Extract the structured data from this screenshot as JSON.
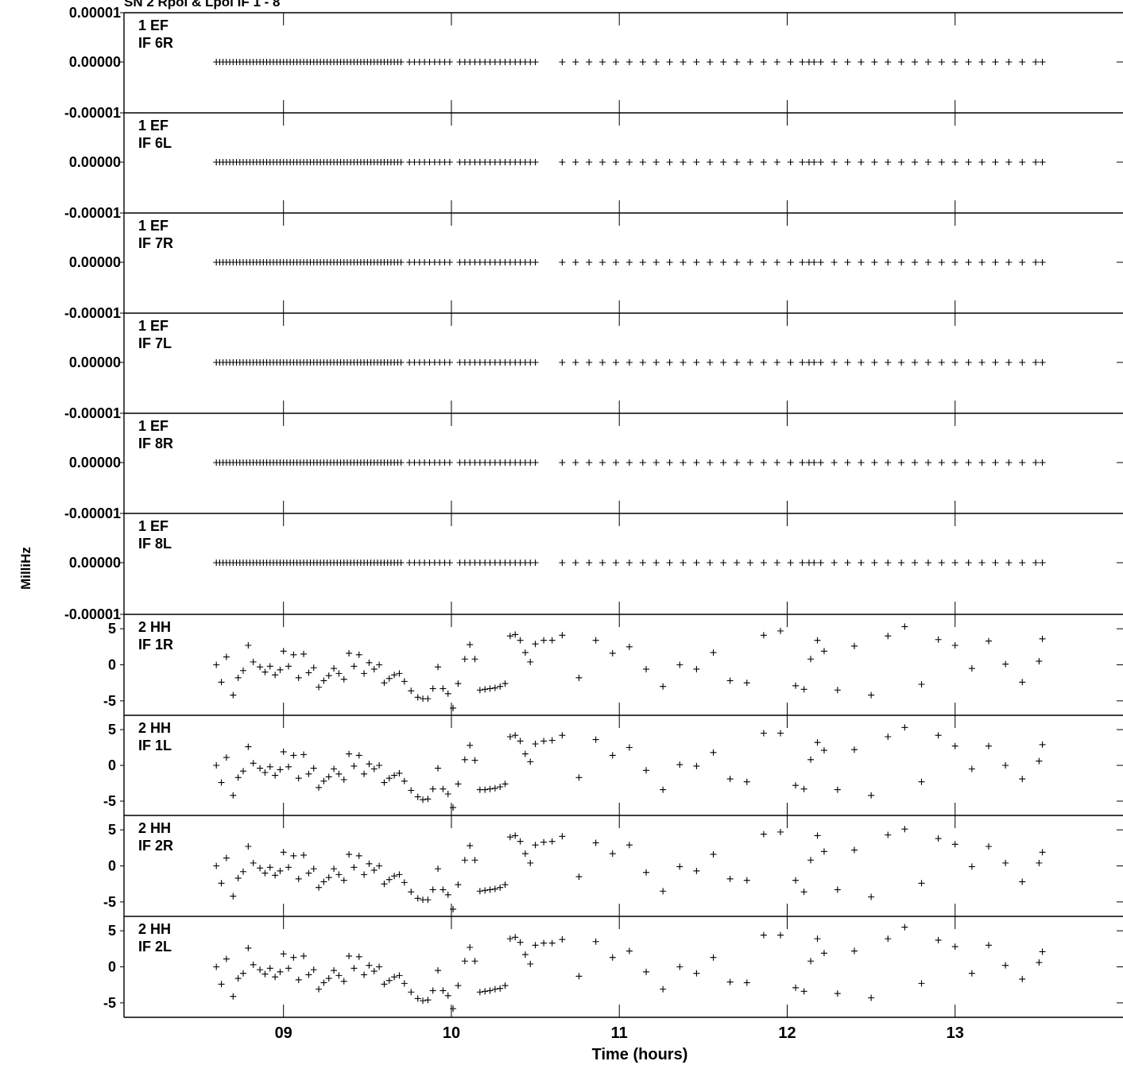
{
  "chart_data": {
    "type": "scatter",
    "title": "SN 2 Rpol & Lpol IF 1 - 8",
    "xlabel": "Time (hours)",
    "ylabel": "MilliHz",
    "xlim": [
      8.05,
      14.0
    ],
    "x_ticks": [
      "09",
      "10",
      "11",
      "12",
      "13"
    ],
    "x_tick_values": [
      9,
      10,
      11,
      12,
      13
    ],
    "panels": [
      {
        "antenna": "1 EF",
        "if": "IF 6R",
        "y_ticks": [
          "0.00001",
          "0.00000",
          "-0.00001"
        ],
        "ylim": [
          -1e-05,
          1e-05
        ],
        "flat": true
      },
      {
        "antenna": "1 EF",
        "if": "IF 6L",
        "y_ticks": [
          "0.00000",
          "-0.00001"
        ],
        "ylim": [
          -1e-05,
          1e-05
        ],
        "flat": true
      },
      {
        "antenna": "1 EF",
        "if": "IF 7R",
        "y_ticks": [
          "0.00000",
          "-0.00001"
        ],
        "ylim": [
          -1e-05,
          1e-05
        ],
        "flat": true
      },
      {
        "antenna": "1 EF",
        "if": "IF 7L",
        "y_ticks": [
          "0.00000",
          "-0.00001"
        ],
        "ylim": [
          -1e-05,
          1e-05
        ],
        "flat": true
      },
      {
        "antenna": "1 EF",
        "if": "IF 8R",
        "y_ticks": [
          "0.00000",
          "-0.00001"
        ],
        "ylim": [
          -1e-05,
          1e-05
        ],
        "flat": true
      },
      {
        "antenna": "1 EF",
        "if": "IF 8L",
        "y_ticks": [
          "0.00000",
          "-0.00001"
        ],
        "ylim": [
          -1e-05,
          1e-05
        ],
        "flat": true
      },
      {
        "antenna": "2 HH",
        "if": "IF 1R",
        "y_ticks": [
          "5",
          "0",
          "-5"
        ],
        "ylim": [
          -7,
          7
        ],
        "flat": false
      },
      {
        "antenna": "2 HH",
        "if": "IF 1L",
        "y_ticks": [
          "5",
          "0",
          "-5"
        ],
        "ylim": [
          -7,
          7
        ],
        "flat": false
      },
      {
        "antenna": "2 HH",
        "if": "IF 2R",
        "y_ticks": [
          "5",
          "0",
          "-5"
        ],
        "ylim": [
          -7,
          7
        ],
        "flat": false
      },
      {
        "antenna": "2 HH",
        "if": "IF 2L",
        "y_ticks": [
          "5",
          "0",
          "-5"
        ],
        "ylim": [
          -7,
          7
        ],
        "flat": false
      }
    ],
    "flat_x": [
      8.6,
      8.62,
      8.64,
      8.66,
      8.68,
      8.7,
      8.72,
      8.74,
      8.76,
      8.78,
      8.8,
      8.82,
      8.84,
      8.86,
      8.88,
      8.9,
      8.92,
      8.94,
      8.96,
      8.98,
      9.0,
      9.02,
      9.04,
      9.06,
      9.08,
      9.1,
      9.12,
      9.14,
      9.16,
      9.18,
      9.2,
      9.22,
      9.24,
      9.26,
      9.28,
      9.3,
      9.32,
      9.34,
      9.36,
      9.38,
      9.4,
      9.42,
      9.44,
      9.46,
      9.48,
      9.5,
      9.52,
      9.54,
      9.56,
      9.58,
      9.6,
      9.62,
      9.64,
      9.66,
      9.68,
      9.7,
      9.75,
      9.78,
      9.81,
      9.84,
      9.87,
      9.9,
      9.93,
      9.96,
      9.99,
      10.05,
      10.08,
      10.11,
      10.14,
      10.17,
      10.2,
      10.23,
      10.26,
      10.29,
      10.32,
      10.35,
      10.38,
      10.41,
      10.44,
      10.47,
      10.5,
      10.66,
      10.74,
      10.82,
      10.9,
      10.98,
      11.06,
      11.14,
      11.22,
      11.3,
      11.38,
      11.46,
      11.54,
      11.62,
      11.7,
      11.78,
      11.86,
      11.94,
      12.02,
      12.09,
      12.13,
      12.16,
      12.2,
      12.28,
      12.36,
      12.44,
      12.52,
      12.6,
      12.68,
      12.76,
      12.84,
      12.92,
      13.0,
      13.08,
      13.16,
      13.24,
      13.32,
      13.4,
      13.48,
      13.52
    ],
    "flat_y": 0,
    "series": [
      {
        "x": [
          8.6,
          8.63,
          8.66,
          8.7,
          8.73,
          8.76,
          8.79,
          8.82,
          8.86,
          8.89,
          8.92,
          8.95,
          8.98,
          9.0,
          9.03,
          9.06,
          9.09,
          9.12,
          9.15,
          9.18,
          9.21,
          9.24,
          9.27,
          9.3,
          9.33,
          9.36,
          9.39,
          9.42,
          9.45,
          9.48,
          9.51,
          9.54,
          9.57,
          9.6,
          9.63,
          9.66,
          9.69,
          9.72,
          9.76,
          9.8,
          9.83,
          9.86,
          9.89,
          9.92,
          9.95,
          9.98,
          10.01,
          10.04,
          10.08,
          10.11,
          10.14,
          10.17,
          10.2,
          10.23,
          10.26,
          10.29,
          10.32,
          10.35,
          10.38,
          10.41,
          10.44,
          10.47,
          10.5,
          10.55,
          10.6,
          10.66,
          10.76,
          10.86,
          10.96,
          11.06,
          11.16,
          11.26,
          11.36,
          11.46,
          11.56,
          11.66,
          11.76,
          11.86,
          11.96,
          12.05,
          12.1,
          12.14,
          12.18,
          12.22,
          12.3,
          12.4,
          12.5,
          12.6,
          12.7,
          12.8,
          12.9,
          13.0,
          13.1,
          13.2,
          13.3,
          13.4,
          13.5,
          13.52
        ],
        "y": [
          0.0,
          -2.4,
          1.1,
          -4.2,
          -1.8,
          -0.8,
          2.7,
          0.4,
          -0.3,
          -1.0,
          -0.2,
          -1.4,
          -0.7,
          1.9,
          -0.2,
          1.4,
          -1.8,
          1.5,
          -1.1,
          -0.4,
          -3.1,
          -2.2,
          -1.5,
          -0.5,
          -1.2,
          -2.0,
          1.6,
          -0.2,
          1.4,
          -1.2,
          0.3,
          -0.6,
          0.0,
          -2.5,
          -1.9,
          -1.4,
          -1.2,
          -2.3,
          -3.6,
          -4.5,
          -4.7,
          -4.7,
          -3.3,
          -0.3,
          -3.3,
          -4.0,
          -6.0,
          -2.6,
          0.8,
          2.8,
          0.8,
          -3.5,
          -3.4,
          -3.3,
          -3.2,
          -3.0,
          -2.6,
          4.0,
          4.2,
          3.4,
          1.7,
          0.4,
          2.9,
          3.4,
          3.4,
          4.1,
          -1.8,
          3.4,
          1.6,
          2.5,
          -0.6,
          -3.0,
          0.0,
          -0.6,
          1.7,
          -2.2,
          -2.5,
          4.1,
          4.7,
          -2.9,
          -3.4,
          0.8,
          3.4,
          1.9,
          -3.5,
          2.6,
          -4.2,
          4.0,
          5.3,
          -2.7,
          3.5,
          2.7,
          -0.5,
          3.3,
          0.1,
          -2.4,
          0.5,
          3.6
        ],
        "name": "IF 1R"
      },
      {
        "x": [
          8.6,
          8.63,
          8.66,
          8.7,
          8.73,
          8.76,
          8.79,
          8.82,
          8.86,
          8.89,
          8.92,
          8.95,
          8.98,
          9.0,
          9.03,
          9.06,
          9.09,
          9.12,
          9.15,
          9.18,
          9.21,
          9.24,
          9.27,
          9.3,
          9.33,
          9.36,
          9.39,
          9.42,
          9.45,
          9.48,
          9.51,
          9.54,
          9.57,
          9.6,
          9.63,
          9.66,
          9.69,
          9.72,
          9.76,
          9.8,
          9.83,
          9.86,
          9.89,
          9.92,
          9.95,
          9.98,
          10.01,
          10.04,
          10.08,
          10.11,
          10.14,
          10.17,
          10.2,
          10.23,
          10.26,
          10.29,
          10.32,
          10.35,
          10.38,
          10.41,
          10.44,
          10.47,
          10.5,
          10.55,
          10.6,
          10.66,
          10.76,
          10.86,
          10.96,
          11.06,
          11.16,
          11.26,
          11.36,
          11.46,
          11.56,
          11.66,
          11.76,
          11.86,
          11.96,
          12.05,
          12.1,
          12.14,
          12.18,
          12.22,
          12.3,
          12.4,
          12.5,
          12.6,
          12.7,
          12.8,
          12.9,
          13.0,
          13.1,
          13.2,
          13.3,
          13.4,
          13.5,
          13.52
        ],
        "y": [
          0.0,
          -2.4,
          1.1,
          -4.2,
          -1.7,
          -0.8,
          2.6,
          0.3,
          -0.4,
          -1.0,
          -0.2,
          -1.4,
          -0.6,
          1.9,
          -0.2,
          1.4,
          -1.8,
          1.5,
          -1.2,
          -0.4,
          -3.1,
          -2.2,
          -1.6,
          -0.5,
          -1.2,
          -2.0,
          1.6,
          -0.1,
          1.4,
          -1.2,
          0.2,
          -0.5,
          0.0,
          -2.4,
          -1.8,
          -1.4,
          -1.1,
          -2.2,
          -3.5,
          -4.4,
          -4.8,
          -4.7,
          -3.3,
          -0.4,
          -3.3,
          -4.0,
          -5.9,
          -2.6,
          0.8,
          2.8,
          0.7,
          -3.4,
          -3.4,
          -3.3,
          -3.2,
          -3.0,
          -2.6,
          4.0,
          4.2,
          3.4,
          1.6,
          0.5,
          3.0,
          3.4,
          3.5,
          4.2,
          -1.7,
          3.6,
          1.4,
          2.5,
          -0.7,
          -3.4,
          0.1,
          -0.1,
          1.8,
          -1.9,
          -2.3,
          4.5,
          4.5,
          -2.8,
          -3.3,
          0.8,
          3.2,
          2.1,
          -3.4,
          2.2,
          -4.2,
          4.0,
          5.3,
          -2.3,
          4.2,
          2.7,
          -0.5,
          2.7,
          0.0,
          -1.9,
          0.6,
          2.9
        ],
        "name": "IF 1L"
      },
      {
        "x": [
          8.6,
          8.63,
          8.66,
          8.7,
          8.73,
          8.76,
          8.79,
          8.82,
          8.86,
          8.89,
          8.92,
          8.95,
          8.98,
          9.0,
          9.03,
          9.06,
          9.09,
          9.12,
          9.15,
          9.18,
          9.21,
          9.24,
          9.27,
          9.3,
          9.33,
          9.36,
          9.39,
          9.42,
          9.45,
          9.48,
          9.51,
          9.54,
          9.57,
          9.6,
          9.63,
          9.66,
          9.69,
          9.72,
          9.76,
          9.8,
          9.83,
          9.86,
          9.89,
          9.92,
          9.95,
          9.98,
          10.01,
          10.04,
          10.08,
          10.11,
          10.14,
          10.17,
          10.2,
          10.23,
          10.26,
          10.29,
          10.32,
          10.35,
          10.38,
          10.41,
          10.44,
          10.47,
          10.5,
          10.55,
          10.6,
          10.66,
          10.76,
          10.86,
          10.96,
          11.06,
          11.16,
          11.26,
          11.36,
          11.46,
          11.56,
          11.66,
          11.76,
          11.86,
          11.96,
          12.05,
          12.1,
          12.14,
          12.18,
          12.22,
          12.3,
          12.4,
          12.5,
          12.6,
          12.7,
          12.8,
          12.9,
          13.0,
          13.1,
          13.2,
          13.3,
          13.4,
          13.5,
          13.52
        ],
        "y": [
          0.0,
          -2.4,
          1.1,
          -4.2,
          -1.7,
          -0.8,
          2.7,
          0.4,
          -0.3,
          -1.0,
          -0.2,
          -1.3,
          -0.7,
          1.9,
          -0.2,
          1.4,
          -1.8,
          1.5,
          -1.0,
          -0.4,
          -3.0,
          -2.2,
          -1.6,
          -0.4,
          -1.2,
          -2.0,
          1.6,
          -0.2,
          1.4,
          -1.2,
          0.3,
          -0.6,
          0.0,
          -2.5,
          -1.9,
          -1.4,
          -1.2,
          -2.3,
          -3.6,
          -4.5,
          -4.7,
          -4.7,
          -3.3,
          -0.4,
          -3.3,
          -4.0,
          -6.0,
          -2.6,
          0.8,
          2.8,
          0.8,
          -3.5,
          -3.4,
          -3.3,
          -3.2,
          -3.0,
          -2.6,
          4.0,
          4.2,
          3.4,
          1.7,
          0.4,
          2.9,
          3.3,
          3.4,
          4.1,
          -1.5,
          3.2,
          1.7,
          2.9,
          -0.9,
          -3.5,
          -0.1,
          -0.7,
          1.6,
          -1.8,
          -2.0,
          4.4,
          4.7,
          -2.0,
          -3.6,
          0.8,
          4.2,
          2.0,
          -3.3,
          2.2,
          -4.3,
          4.3,
          5.1,
          -2.4,
          3.8,
          3.0,
          -0.1,
          2.7,
          0.4,
          -2.2,
          0.4,
          1.9
        ],
        "name": "IF 2R"
      },
      {
        "x": [
          8.6,
          8.63,
          8.66,
          8.7,
          8.73,
          8.76,
          8.79,
          8.82,
          8.86,
          8.89,
          8.92,
          8.95,
          8.98,
          9.0,
          9.03,
          9.06,
          9.09,
          9.12,
          9.15,
          9.18,
          9.21,
          9.24,
          9.27,
          9.3,
          9.33,
          9.36,
          9.39,
          9.42,
          9.45,
          9.48,
          9.51,
          9.54,
          9.57,
          9.6,
          9.63,
          9.66,
          9.69,
          9.72,
          9.76,
          9.8,
          9.83,
          9.86,
          9.89,
          9.92,
          9.95,
          9.98,
          10.01,
          10.04,
          10.08,
          10.11,
          10.14,
          10.17,
          10.2,
          10.23,
          10.26,
          10.29,
          10.32,
          10.35,
          10.38,
          10.41,
          10.44,
          10.47,
          10.5,
          10.55,
          10.6,
          10.66,
          10.76,
          10.86,
          10.96,
          11.06,
          11.16,
          11.26,
          11.36,
          11.46,
          11.56,
          11.66,
          11.76,
          11.86,
          11.96,
          12.05,
          12.1,
          12.14,
          12.18,
          12.22,
          12.3,
          12.4,
          12.5,
          12.6,
          12.7,
          12.8,
          12.9,
          13.0,
          13.1,
          13.2,
          13.3,
          13.4,
          13.5,
          13.52
        ],
        "y": [
          0.0,
          -2.4,
          1.1,
          -4.1,
          -1.6,
          -0.9,
          2.6,
          0.3,
          -0.4,
          -1.0,
          -0.2,
          -1.4,
          -0.7,
          1.8,
          -0.2,
          1.3,
          -1.8,
          1.5,
          -1.1,
          -0.4,
          -3.1,
          -2.2,
          -1.6,
          -0.5,
          -1.2,
          -2.0,
          1.5,
          -0.2,
          1.4,
          -1.1,
          0.2,
          -0.6,
          0.0,
          -2.4,
          -1.9,
          -1.4,
          -1.2,
          -2.3,
          -3.5,
          -4.4,
          -4.7,
          -4.6,
          -3.3,
          -0.5,
          -3.3,
          -4.0,
          -5.8,
          -2.6,
          0.8,
          2.7,
          0.8,
          -3.5,
          -3.4,
          -3.3,
          -3.1,
          -3.0,
          -2.6,
          3.9,
          4.1,
          3.4,
          1.7,
          0.4,
          3.0,
          3.3,
          3.3,
          3.8,
          -1.3,
          3.5,
          1.3,
          2.2,
          -0.7,
          -3.1,
          0.0,
          -0.9,
          1.3,
          -2.1,
          -2.2,
          4.4,
          4.4,
          -2.9,
          -3.4,
          0.8,
          3.9,
          1.9,
          -3.7,
          2.2,
          -4.3,
          3.9,
          5.5,
          -2.3,
          3.7,
          2.8,
          -0.9,
          3.0,
          0.2,
          -1.7,
          0.6,
          2.1
        ],
        "name": "IF 2L"
      }
    ]
  }
}
